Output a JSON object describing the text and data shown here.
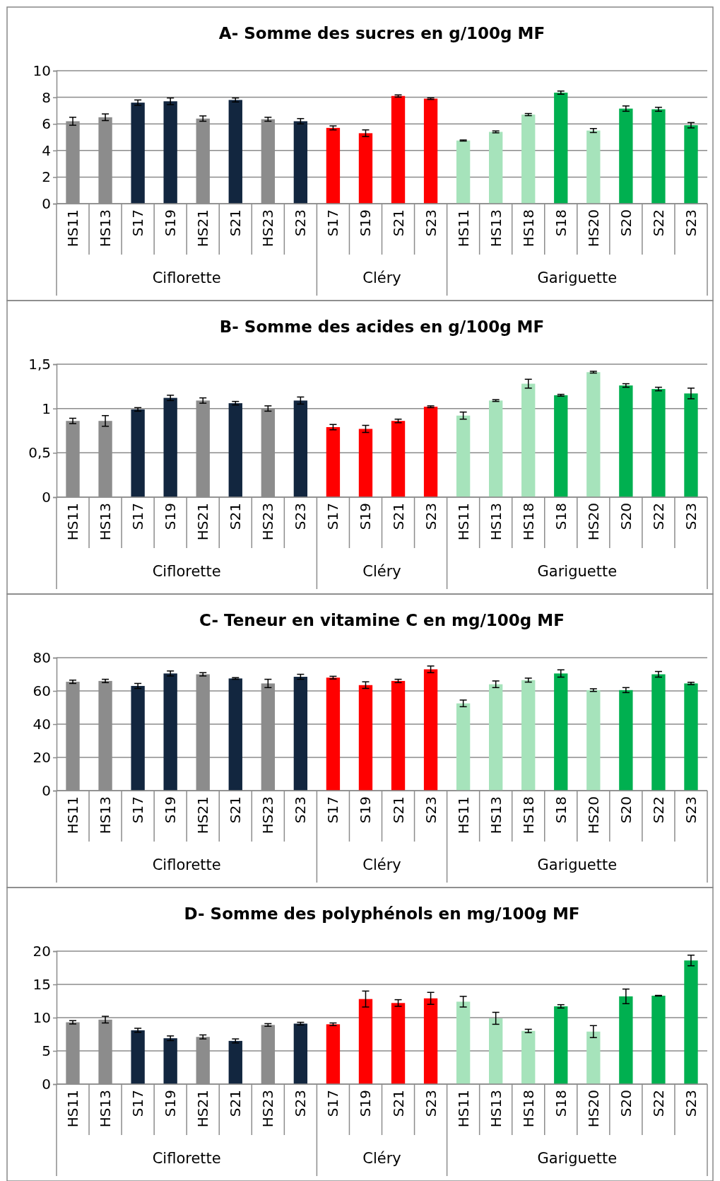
{
  "chart_data": [
    {
      "type": "bar",
      "title": "A- Somme des sucres en g/100g MF",
      "categories": [
        "HS11",
        "HS13",
        "S17",
        "S19",
        "HS21",
        "S21",
        "HS23",
        "S23",
        "S17",
        "S19",
        "S21",
        "S23",
        "HS11",
        "HS13",
        "HS18",
        "S18",
        "HS20",
        "S20",
        "S22",
        "S23"
      ],
      "values": [
        6.2,
        6.5,
        7.6,
        7.7,
        6.4,
        7.8,
        6.35,
        6.2,
        5.7,
        5.3,
        8.1,
        7.9,
        4.75,
        5.4,
        6.7,
        8.35,
        5.5,
        7.15,
        7.1,
        5.9
      ],
      "errors": [
        0.3,
        0.25,
        0.2,
        0.25,
        0.2,
        0.15,
        0.15,
        0.2,
        0.15,
        0.25,
        0.08,
        0.06,
        0.04,
        0.07,
        0.08,
        0.12,
        0.15,
        0.2,
        0.15,
        0.2
      ],
      "colors": [
        "#8c8c8c",
        "#8c8c8c",
        "#12263f",
        "#12263f",
        "#8c8c8c",
        "#12263f",
        "#8c8c8c",
        "#12263f",
        "#ff0000",
        "#ff0000",
        "#ff0000",
        "#ff0000",
        "#a6e3bb",
        "#a6e3bb",
        "#a6e3bb",
        "#00b050",
        "#a6e3bb",
        "#00b050",
        "#00b050",
        "#00b050"
      ],
      "ylim": [
        0,
        10
      ],
      "yticks": [
        0,
        2,
        4,
        6,
        8,
        10
      ],
      "grid": "y",
      "annotations": [
        "Ciflorette",
        "Cléry",
        "Gariguette"
      ]
    },
    {
      "type": "bar",
      "title": "B- Somme des acides en g/100g MF",
      "categories": [
        "HS11",
        "HS13",
        "S17",
        "S19",
        "HS21",
        "S21",
        "HS23",
        "S23",
        "S17",
        "S19",
        "S21",
        "S23",
        "HS11",
        "HS13",
        "HS18",
        "S18",
        "HS20",
        "S20",
        "S22",
        "S23"
      ],
      "values": [
        0.86,
        0.86,
        0.99,
        1.12,
        1.09,
        1.06,
        1.0,
        1.09,
        0.79,
        0.77,
        0.86,
        1.02,
        0.92,
        1.09,
        1.28,
        1.15,
        1.41,
        1.26,
        1.22,
        1.17
      ],
      "errors": [
        0.03,
        0.06,
        0.02,
        0.03,
        0.03,
        0.02,
        0.03,
        0.04,
        0.03,
        0.04,
        0.02,
        0.01,
        0.04,
        0.01,
        0.05,
        0.01,
        0.01,
        0.02,
        0.02,
        0.06
      ],
      "colors": [
        "#8c8c8c",
        "#8c8c8c",
        "#12263f",
        "#12263f",
        "#8c8c8c",
        "#12263f",
        "#8c8c8c",
        "#12263f",
        "#ff0000",
        "#ff0000",
        "#ff0000",
        "#ff0000",
        "#a6e3bb",
        "#a6e3bb",
        "#a6e3bb",
        "#00b050",
        "#a6e3bb",
        "#00b050",
        "#00b050",
        "#00b050"
      ],
      "ylim": [
        0,
        1.5
      ],
      "yticks": [
        0,
        {
          "value": 0.5,
          "label": "0,5"
        },
        1,
        {
          "value": 1.5,
          "label": "1,5"
        }
      ],
      "grid": "y",
      "annotations": [
        "Ciflorette",
        "Cléry",
        "Gariguette"
      ]
    },
    {
      "type": "bar",
      "title": "C- Teneur en vitamine C en mg/100g MF",
      "categories": [
        "HS11",
        "HS13",
        "S17",
        "S19",
        "HS21",
        "S21",
        "HS23",
        "S23",
        "S17",
        "S19",
        "S21",
        "S23",
        "HS11",
        "HS13",
        "HS18",
        "S18",
        "HS20",
        "S20",
        "S22",
        "S23"
      ],
      "values": [
        65.5,
        66,
        63,
        70.5,
        70,
        67.5,
        64.5,
        68.5,
        68,
        63.5,
        66,
        73,
        52.5,
        64,
        66.5,
        70.5,
        60.5,
        60.5,
        70,
        64.5
      ],
      "errors": [
        1,
        1,
        1.5,
        1.5,
        1,
        0.5,
        2.5,
        1.5,
        0.8,
        2,
        1,
        2,
        2,
        2,
        1.2,
        2.2,
        0.8,
        1.5,
        1.7,
        0.7
      ],
      "colors": [
        "#8c8c8c",
        "#8c8c8c",
        "#12263f",
        "#12263f",
        "#8c8c8c",
        "#12263f",
        "#8c8c8c",
        "#12263f",
        "#ff0000",
        "#ff0000",
        "#ff0000",
        "#ff0000",
        "#a6e3bb",
        "#a6e3bb",
        "#a6e3bb",
        "#00b050",
        "#a6e3bb",
        "#00b050",
        "#00b050",
        "#00b050"
      ],
      "ylim": [
        0,
        80
      ],
      "yticks": [
        0,
        20,
        40,
        60,
        80
      ],
      "grid": "y",
      "annotations": [
        "Ciflorette",
        "Cléry",
        "Gariguette"
      ]
    },
    {
      "type": "bar",
      "title": "D- Somme des polyphénols en mg/100g MF",
      "categories": [
        "HS11",
        "HS13",
        "S17",
        "S19",
        "HS21",
        "S21",
        "HS23",
        "S23",
        "S17",
        "S19",
        "S21",
        "S23",
        "HS11",
        "HS13",
        "HS18",
        "S18",
        "HS20",
        "S20",
        "S22",
        "S23"
      ],
      "values": [
        9.3,
        9.7,
        8.1,
        6.9,
        7.1,
        6.5,
        8.9,
        9.1,
        9.0,
        12.8,
        12.2,
        12.9,
        12.4,
        9.9,
        8.0,
        11.7,
        7.9,
        13.2,
        13.3,
        18.6
      ],
      "errors": [
        0.25,
        0.5,
        0.3,
        0.35,
        0.3,
        0.3,
        0.2,
        0.2,
        0.2,
        1.2,
        0.5,
        0.9,
        0.8,
        0.9,
        0.25,
        0.25,
        0.9,
        1.1,
        0.05,
        0.8
      ],
      "colors": [
        "#8c8c8c",
        "#8c8c8c",
        "#12263f",
        "#12263f",
        "#8c8c8c",
        "#12263f",
        "#8c8c8c",
        "#12263f",
        "#ff0000",
        "#ff0000",
        "#ff0000",
        "#ff0000",
        "#a6e3bb",
        "#a6e3bb",
        "#a6e3bb",
        "#00b050",
        "#a6e3bb",
        "#00b050",
        "#00b050",
        "#00b050"
      ],
      "ylim": [
        0,
        20
      ],
      "yticks": [
        0,
        5,
        10,
        15,
        20
      ],
      "grid": "y",
      "annotations": [
        "Ciflorette",
        "Cléry",
        "Gariguette"
      ]
    }
  ]
}
